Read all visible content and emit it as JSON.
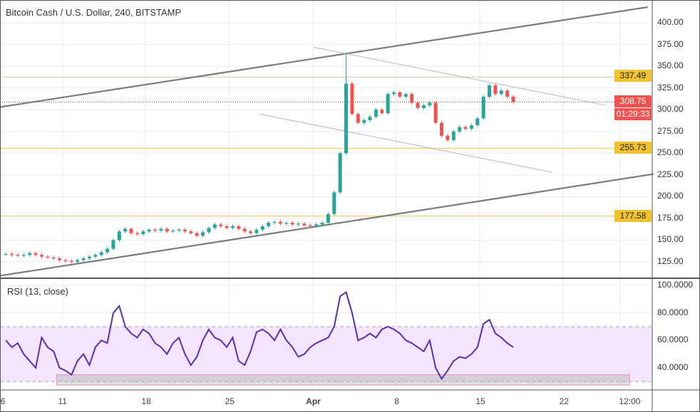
{
  "header": {
    "title": "Bitcoin Cash / U.S. Dollar, 240, BITSTAMP"
  },
  "rsi": {
    "title": "RSI (13, close)",
    "color": "#5b2db0",
    "band_color": "#f3e5fd"
  },
  "colors": {
    "up": "#26a69a",
    "down": "#ef5350",
    "level": "#f0c22f",
    "channel": "#787b80",
    "trend": "#aab8c8"
  },
  "tags": {
    "resistance": "337.49",
    "last_price": "308.75",
    "countdown": "01:29:33",
    "support": "255.73",
    "base": "177.58"
  },
  "chart_data": [
    {
      "type": "candlestick",
      "interval": "240",
      "start": "Mar 6 00:00",
      "bar_hours": 12,
      "closes": [
        134,
        133,
        132,
        133,
        135,
        133,
        131,
        130,
        129,
        127,
        126,
        125,
        127,
        129,
        131,
        133,
        136,
        140,
        150,
        160,
        163,
        158,
        157,
        160,
        162,
        161,
        163,
        160,
        161,
        162,
        160,
        158,
        155,
        159,
        164,
        168,
        166,
        164,
        166,
        163,
        160,
        158,
        162,
        166,
        170,
        171,
        169,
        170,
        168,
        169,
        167,
        166,
        168,
        170,
        180,
        205,
        250,
        330,
        295,
        285,
        288,
        292,
        300,
        296,
        318,
        320,
        315,
        318,
        308,
        302,
        305,
        308,
        285,
        270,
        265,
        275,
        280,
        278,
        282,
        290,
        315,
        328,
        318,
        322,
        315,
        309
      ],
      "peak_high": 365,
      "ylim": [
        110,
        420
      ],
      "y_ticks": [
        "125.00",
        "150.00",
        "175.00",
        "200.00",
        "225.00",
        "250.00",
        "275.00",
        "300.00",
        "325.00",
        "350.00",
        "375.00",
        "400.00"
      ],
      "horizontal_levels": [
        337.49,
        255.73,
        177.58
      ],
      "last_price": 308.75,
      "channel_lines": [
        {
          "from": {
            "date": "Mar 5 18:00",
            "price": 303
          },
          "to": {
            "date": "Apr 29 00:00",
            "price": 418
          }
        },
        {
          "from": {
            "date": "Mar 5 18:00",
            "price": 109
          },
          "to": {
            "date": "Apr 29 12:00",
            "price": 226
          }
        }
      ],
      "trend_lines": [
        {
          "from": {
            "date": "Apr 1 00:00",
            "price": 372
          },
          "to": {
            "date": "Apr 25 12:00",
            "price": 305
          }
        },
        {
          "from": {
            "date": "Mar 27 12:00",
            "price": 295
          },
          "to": {
            "date": "Apr 21 00:00",
            "price": 228
          }
        }
      ],
      "x_ticks": [
        {
          "label": "6",
          "date": "Mar 6 00:00"
        },
        {
          "label": "11",
          "date": "Mar 11 00:00"
        },
        {
          "label": "18",
          "date": "Mar 18 00:00"
        },
        {
          "label": "25",
          "date": "Mar 25 00:00"
        },
        {
          "label": "Apr",
          "date": "Apr 1 00:00"
        },
        {
          "label": "8",
          "date": "Apr 8 00:00"
        },
        {
          "label": "15",
          "date": "Apr 15 00:00"
        },
        {
          "label": "22",
          "date": "Apr 22 00:00"
        },
        {
          "label": "12:00",
          "date": "Apr 27 12:00"
        }
      ]
    },
    {
      "type": "line",
      "title": "RSI (13, close)",
      "values": [
        60,
        55,
        58,
        50,
        45,
        40,
        62,
        55,
        52,
        40,
        38,
        35,
        45,
        50,
        42,
        55,
        60,
        58,
        80,
        85,
        70,
        65,
        62,
        68,
        65,
        58,
        55,
        50,
        58,
        62,
        50,
        42,
        48,
        60,
        68,
        62,
        60,
        55,
        62,
        45,
        42,
        52,
        66,
        68,
        65,
        60,
        68,
        60,
        55,
        48,
        50,
        55,
        58,
        60,
        62,
        70,
        92,
        95,
        80,
        60,
        62,
        65,
        62,
        68,
        70,
        68,
        65,
        60,
        58,
        55,
        52,
        60,
        40,
        32,
        38,
        45,
        48,
        47,
        50,
        55,
        72,
        75,
        65,
        62,
        58,
        55
      ],
      "ylim": [
        25,
        102
      ],
      "y_ticks": [
        "40.0000",
        "60.0000",
        "80.0000",
        "100.0000"
      ],
      "bands": [
        30,
        70
      ],
      "highlight_zone": {
        "from": "Mar 10 12:00",
        "to": "Apr 27 12:00",
        "low": 27.5,
        "high": 35
      }
    }
  ]
}
